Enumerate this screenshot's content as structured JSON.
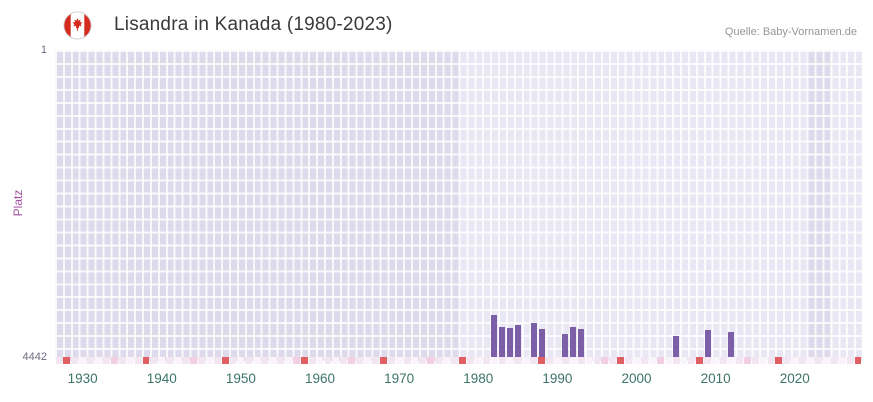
{
  "header": {
    "title": "Lisandra in Kanada (1980-2023)",
    "source": "Quelle: Baby-Vornamen.de",
    "flag_icon": "canada-flag-icon"
  },
  "chart_data": {
    "type": "bar",
    "title": "Lisandra in Kanada (1980-2023)",
    "xlabel": "",
    "ylabel": "Platz",
    "y_axis": {
      "min": 1,
      "max": 4442,
      "inverted": true,
      "top_label": "1",
      "bottom_label": "4442"
    },
    "x_axis": {
      "domain": [
        1927,
        2028
      ],
      "ticks": [
        1930,
        1940,
        1950,
        1960,
        1970,
        1980,
        1990,
        2000,
        2010,
        2020
      ]
    },
    "highlight_region": {
      "from": 1978,
      "to": 2028
    },
    "dim_band": {
      "from": 2022,
      "to": 2024
    },
    "series": [
      {
        "name": "Platz",
        "points": [
          {
            "year": 1982,
            "rank": 3780
          },
          {
            "year": 1983,
            "rank": 3960
          },
          {
            "year": 1984,
            "rank": 3965
          },
          {
            "year": 1985,
            "rank": 3930
          },
          {
            "year": 1987,
            "rank": 3905
          },
          {
            "year": 1988,
            "rank": 3980
          },
          {
            "year": 1991,
            "rank": 4060
          },
          {
            "year": 1992,
            "rank": 3955
          },
          {
            "year": 1993,
            "rank": 3990
          },
          {
            "year": 2005,
            "rank": 4085
          },
          {
            "year": 2009,
            "rank": 3995
          },
          {
            "year": 2012,
            "rank": 4030
          }
        ]
      }
    ],
    "baseline_markers": {
      "red_years": [
        1928,
        1938,
        1948,
        1958,
        1968,
        1978,
        1988,
        1998,
        2008,
        2018,
        2028
      ],
      "pink_years": [
        1934,
        1944,
        1957,
        1964,
        1974,
        1996,
        2003,
        2014
      ]
    },
    "colors": {
      "bar": "#7d5fa8",
      "plot_bg": "#dedaec",
      "plot_bg_light": "#eae7f5",
      "grid": "#ffffff",
      "marker_red": "#e05f63",
      "marker_pink": "#f2cfe2",
      "marker_light_a": "#f9f4f9",
      "marker_light_b": "#f4e6f1",
      "flag_red": "#d52b1e"
    }
  }
}
